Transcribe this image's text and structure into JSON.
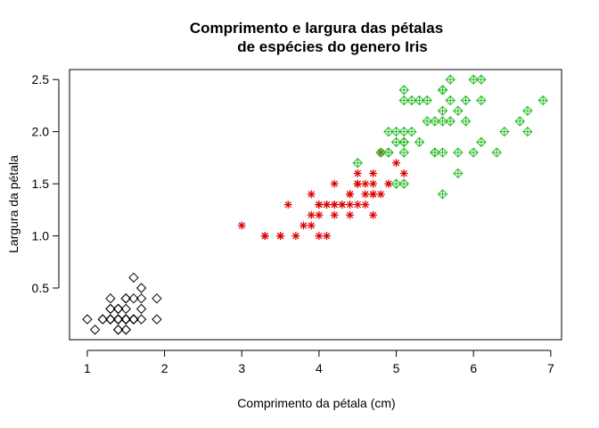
{
  "chart_data": {
    "type": "scatter",
    "title_lines": [
      "Comprimento e largura das pétalas",
      "de espécies do genero Iris"
    ],
    "xlabel": "Comprimento da pétala (cm)",
    "ylabel": "Largura da pétala",
    "xlim": [
      0.77,
      7.14
    ],
    "ylim": [
      0.004,
      2.596
    ],
    "xticks": [
      1,
      2,
      3,
      4,
      5,
      6,
      7
    ],
    "yticks": [
      0.5,
      1.0,
      1.5,
      2.0,
      2.5
    ],
    "ytick_labels": [
      "0.5",
      "1.0",
      "1.5",
      "2.0",
      "2.5"
    ],
    "grid": false,
    "series": [
      {
        "marker": "diamond",
        "color": "#000000",
        "points": [
          [
            1.4,
            0.2
          ],
          [
            1.4,
            0.2
          ],
          [
            1.3,
            0.2
          ],
          [
            1.5,
            0.2
          ],
          [
            1.4,
            0.2
          ],
          [
            1.7,
            0.4
          ],
          [
            1.4,
            0.3
          ],
          [
            1.5,
            0.2
          ],
          [
            1.4,
            0.2
          ],
          [
            1.5,
            0.1
          ],
          [
            1.5,
            0.2
          ],
          [
            1.6,
            0.2
          ],
          [
            1.4,
            0.1
          ],
          [
            1.1,
            0.1
          ],
          [
            1.2,
            0.2
          ],
          [
            1.5,
            0.4
          ],
          [
            1.3,
            0.4
          ],
          [
            1.4,
            0.3
          ],
          [
            1.7,
            0.3
          ],
          [
            1.5,
            0.3
          ],
          [
            1.7,
            0.2
          ],
          [
            1.5,
            0.4
          ],
          [
            1.0,
            0.2
          ],
          [
            1.7,
            0.5
          ],
          [
            1.9,
            0.2
          ],
          [
            1.6,
            0.2
          ],
          [
            1.6,
            0.4
          ],
          [
            1.5,
            0.2
          ],
          [
            1.4,
            0.2
          ],
          [
            1.6,
            0.2
          ],
          [
            1.6,
            0.2
          ],
          [
            1.5,
            0.4
          ],
          [
            1.5,
            0.1
          ],
          [
            1.4,
            0.2
          ],
          [
            1.5,
            0.2
          ],
          [
            1.2,
            0.2
          ],
          [
            1.3,
            0.2
          ],
          [
            1.4,
            0.1
          ],
          [
            1.3,
            0.2
          ],
          [
            1.5,
            0.2
          ],
          [
            1.3,
            0.3
          ],
          [
            1.3,
            0.3
          ],
          [
            1.3,
            0.2
          ],
          [
            1.6,
            0.6
          ],
          [
            1.9,
            0.4
          ],
          [
            1.4,
            0.3
          ],
          [
            1.6,
            0.2
          ],
          [
            1.4,
            0.2
          ],
          [
            1.5,
            0.2
          ],
          [
            1.4,
            0.2
          ]
        ]
      },
      {
        "marker": "asterisk",
        "color": "#dd0000",
        "points": [
          [
            4.7,
            1.4
          ],
          [
            4.5,
            1.5
          ],
          [
            4.9,
            1.5
          ],
          [
            4.0,
            1.3
          ],
          [
            4.6,
            1.5
          ],
          [
            4.5,
            1.3
          ],
          [
            4.7,
            1.6
          ],
          [
            3.3,
            1.0
          ],
          [
            4.6,
            1.3
          ],
          [
            3.9,
            1.4
          ],
          [
            3.5,
            1.0
          ],
          [
            4.2,
            1.5
          ],
          [
            4.0,
            1.0
          ],
          [
            4.7,
            1.4
          ],
          [
            3.6,
            1.3
          ],
          [
            4.4,
            1.4
          ],
          [
            4.5,
            1.5
          ],
          [
            4.1,
            1.0
          ],
          [
            4.5,
            1.5
          ],
          [
            3.9,
            1.1
          ],
          [
            4.8,
            1.8
          ],
          [
            4.0,
            1.3
          ],
          [
            4.9,
            1.5
          ],
          [
            4.7,
            1.2
          ],
          [
            4.3,
            1.3
          ],
          [
            4.4,
            1.4
          ],
          [
            4.8,
            1.4
          ],
          [
            5.0,
            1.7
          ],
          [
            4.5,
            1.5
          ],
          [
            3.5,
            1.0
          ],
          [
            3.8,
            1.1
          ],
          [
            3.7,
            1.0
          ],
          [
            3.9,
            1.2
          ],
          [
            5.1,
            1.6
          ],
          [
            4.5,
            1.5
          ],
          [
            4.5,
            1.6
          ],
          [
            4.7,
            1.5
          ],
          [
            4.4,
            1.3
          ],
          [
            4.1,
            1.3
          ],
          [
            4.0,
            1.3
          ],
          [
            4.4,
            1.2
          ],
          [
            4.6,
            1.4
          ],
          [
            4.0,
            1.2
          ],
          [
            3.3,
            1.0
          ],
          [
            4.2,
            1.3
          ],
          [
            4.2,
            1.2
          ],
          [
            4.2,
            1.3
          ],
          [
            4.3,
            1.3
          ],
          [
            3.0,
            1.1
          ],
          [
            4.1,
            1.3
          ]
        ]
      },
      {
        "marker": "diamond-plus",
        "color": "#22bb22",
        "points": [
          [
            6.0,
            2.5
          ],
          [
            5.1,
            1.9
          ],
          [
            5.9,
            2.1
          ],
          [
            5.6,
            1.8
          ],
          [
            5.8,
            2.2
          ],
          [
            6.6,
            2.1
          ],
          [
            4.5,
            1.7
          ],
          [
            6.3,
            1.8
          ],
          [
            5.8,
            1.8
          ],
          [
            6.1,
            2.5
          ],
          [
            5.1,
            2.0
          ],
          [
            5.3,
            1.9
          ],
          [
            5.5,
            2.1
          ],
          [
            5.0,
            2.0
          ],
          [
            5.1,
            2.4
          ],
          [
            5.3,
            2.3
          ],
          [
            5.5,
            1.8
          ],
          [
            6.7,
            2.2
          ],
          [
            6.9,
            2.3
          ],
          [
            5.0,
            1.5
          ],
          [
            5.7,
            2.3
          ],
          [
            4.9,
            2.0
          ],
          [
            6.7,
            2.0
          ],
          [
            4.9,
            1.8
          ],
          [
            5.7,
            2.1
          ],
          [
            6.0,
            1.8
          ],
          [
            4.8,
            1.8
          ],
          [
            4.9,
            1.8
          ],
          [
            5.6,
            2.1
          ],
          [
            5.8,
            1.6
          ],
          [
            6.1,
            1.9
          ],
          [
            6.4,
            2.0
          ],
          [
            5.6,
            2.2
          ],
          [
            5.1,
            1.5
          ],
          [
            5.6,
            1.4
          ],
          [
            6.1,
            2.3
          ],
          [
            5.6,
            2.4
          ],
          [
            5.5,
            1.8
          ],
          [
            4.8,
            1.8
          ],
          [
            5.4,
            2.1
          ],
          [
            5.6,
            2.4
          ],
          [
            5.1,
            2.3
          ],
          [
            5.1,
            1.9
          ],
          [
            5.9,
            2.3
          ],
          [
            5.7,
            2.5
          ],
          [
            5.2,
            2.3
          ],
          [
            5.0,
            1.9
          ],
          [
            5.2,
            2.0
          ],
          [
            5.4,
            2.3
          ],
          [
            5.1,
            1.8
          ]
        ]
      }
    ]
  }
}
